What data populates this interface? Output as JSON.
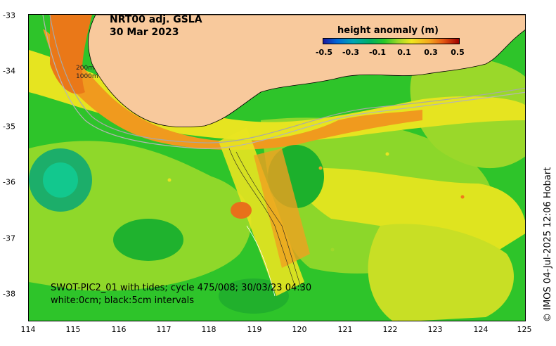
{
  "map": {
    "title": "NRT00 adj. GSLA",
    "date": "30 Mar 2023",
    "legend_title": "height anomaly (m)",
    "colorbar_ticks": [
      "-0.5",
      "-0.3",
      "-0.1",
      "0.1",
      "0.3",
      "0.5"
    ],
    "lat_labels": [
      "-33",
      "-34",
      "-35",
      "-36",
      "-37",
      "-38"
    ],
    "lon_labels": [
      "114",
      "115",
      "116",
      "117",
      "118",
      "119",
      "120",
      "121",
      "122",
      "123",
      "124",
      "125"
    ],
    "isobath_labels": [
      "200m",
      "1000m"
    ],
    "swot_note_line1": "SWOT-PIC2_01 with tides; cycle 475/008; 30/03/23 04:30",
    "swot_note_line2": "white:0cm; black:5cm intervals",
    "credit": "© IMOS 04-Jul-2025 12:06 Hobart",
    "colors": {
      "land": "#f8c99c",
      "green": "#22c12a",
      "lime": "#9ed82a",
      "yellow": "#e8e622",
      "orange": "#f0a01e",
      "teal": "#18c07a",
      "dark_orange": "#ea7414"
    }
  }
}
